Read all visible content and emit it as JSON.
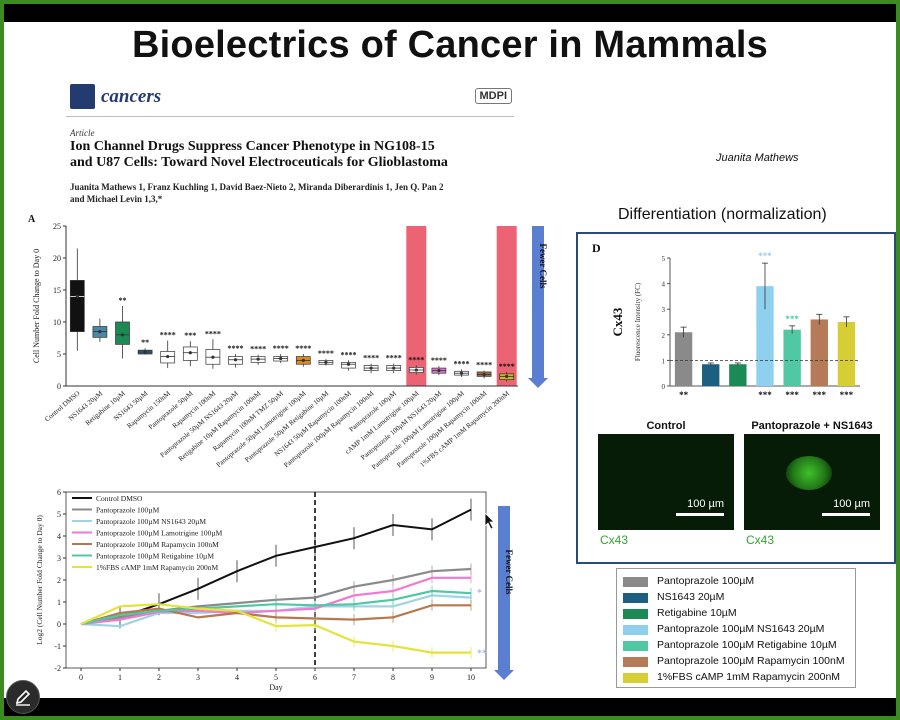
{
  "slide": {
    "title": "Bioelectrics of Cancer in Mammals",
    "presenter": "Juanita Mathews"
  },
  "paper": {
    "journal": "cancers",
    "publisher": "MDPI",
    "article_type": "Article",
    "title_line1": "Ion Channel Drugs Suppress Cancer Phenotype in NG108-15",
    "title_line2": "and U87 Cells: Toward Novel Electroceuticals for Glioblastoma",
    "authors_line1": "Juanita Mathews 1, Franz Kuchling 1, David Baez-Nieto 2, Miranda Diberardinis 1, Jen Q. Pan 2",
    "authors_line2": "and Michael Levin 1,3,*"
  },
  "colors": {
    "frame": "#3b8c1f",
    "arrow": "#5b7fd0",
    "highlight": "#e9495c",
    "panel_d_border": "#2a4a7e",
    "micro_label": "#2fa62f"
  },
  "differentiation_heading": "Differentiation (normalization)",
  "chart_data": [
    {
      "id": "A",
      "type": "box",
      "panel_label": "A",
      "ylabel": "Cell Number Fold Change to Day 0",
      "ylim": [
        0,
        25
      ],
      "yticks": [
        0,
        5,
        10,
        15,
        20,
        25
      ],
      "side_label": "Fewer Cells",
      "categories": [
        "Control DMSO",
        "NS1643 20µM",
        "Retigabine 10µM",
        "NS1643 50µM",
        "Rapamycin 150nM",
        "Pantoprazole 50µM",
        "Rapamycin 100nM",
        "Pantoprazole 50µM NS1643 20µM",
        "Retigabine 10µM Rapamycin 100nM",
        "Rapamycin 100nM TMZ 50µM",
        "Pantoprazole 50µM Lamotrigine 100µM",
        "Pantoprazole 50µM Retigabine 10µM",
        "NS1643 50µM Rapamycin 100nM",
        "Pantoprazole 100µM Rapamycin 100nM",
        "Pantoprazole 100µM",
        "cAMP 1mM Lamotrigine 100µM",
        "Pantoprazole 100µM NS1643 20µM",
        "Pantoprazole 100µM Lamotrigine 100µM",
        "Pantoprazole 100µM Rapamycin 100nM",
        "1%FBS cAMP 1mM Rapamycin 200nM"
      ],
      "medians": [
        14,
        8.5,
        8,
        5.3,
        4.6,
        5.2,
        4.5,
        4.1,
        4.2,
        4.3,
        4.0,
        3.7,
        3.4,
        2.8,
        2.8,
        2.5,
        2.4,
        2.0,
        1.8,
        1.5
      ],
      "q1": [
        8.5,
        7.6,
        6.5,
        5.0,
        3.6,
        4.0,
        3.4,
        3.4,
        3.7,
        3.9,
        3.4,
        3.4,
        2.8,
        2.4,
        2.4,
        2.1,
        2.0,
        1.7,
        1.5,
        1.0
      ],
      "q3": [
        16.5,
        9.3,
        10,
        5.6,
        5.4,
        6.1,
        5.7,
        4.6,
        4.6,
        4.6,
        4.6,
        4.0,
        3.7,
        3.2,
        3.2,
        2.9,
        2.8,
        2.3,
        2.2,
        1.9
      ],
      "whisker_low": [
        5.5,
        6.9,
        4.3,
        4.9,
        2.8,
        3.1,
        2.7,
        2.9,
        3.3,
        3.6,
        3.0,
        3.2,
        2.4,
        2.0,
        2.0,
        1.8,
        1.7,
        1.4,
        1.2,
        0.7
      ],
      "whisker_high": [
        21.5,
        10.5,
        12.5,
        5.9,
        7.1,
        7.0,
        7.3,
        5.0,
        4.9,
        5.0,
        5.0,
        4.2,
        4.0,
        3.5,
        3.5,
        3.2,
        3.1,
        2.6,
        2.4,
        2.2
      ],
      "box_colors": [
        "#111111",
        "#4a86a8",
        "#1c8a55",
        "#2b5e8e",
        "#ffffff",
        "#ffffff",
        "#ffffff",
        "#ffffff",
        "#ffffff",
        "#ffffff",
        "#e08a1e",
        "#ffffff",
        "#ffffff",
        "#ffffff",
        "#ffffff",
        "#ffffff",
        "#d977c8",
        "#ffffff",
        "#a06b45",
        "#c9b91e"
      ],
      "significance": [
        "",
        "",
        "**",
        "**",
        "****",
        "***",
        "****",
        "****",
        "****",
        "****",
        "****",
        "****",
        "****",
        "****",
        "****",
        "****",
        "****",
        "****",
        "****",
        "****"
      ],
      "highlighted": [
        "cAMP 1mM Lamotrigine 100µM",
        "1%FBS cAMP 1mM Rapamycin 200nM"
      ]
    },
    {
      "id": "B",
      "type": "line",
      "ylabel": "Log2 (Cell Number Fold Change to Day 0)",
      "xlabel": "Day",
      "x": [
        0,
        1,
        2,
        3,
        4,
        5,
        6,
        7,
        8,
        9,
        10
      ],
      "ylim": [
        -2,
        6
      ],
      "yticks": [
        -2,
        -1,
        0,
        1,
        2,
        3,
        4,
        5,
        6
      ],
      "xticks": [
        0,
        1,
        2,
        3,
        4,
        5,
        6,
        7,
        8,
        9,
        10
      ],
      "vline_day": 6,
      "side_label": "Fewer Cells",
      "annotations": [
        "*",
        "**"
      ],
      "series": [
        {
          "name": "Control DMSO",
          "color": "#111111",
          "values": [
            0,
            0.3,
            0.9,
            1.6,
            2.4,
            3.1,
            3.5,
            3.9,
            4.5,
            4.3,
            5.2
          ]
        },
        {
          "name": "Pantoprazole 100µM",
          "color": "#8a8a8a",
          "values": [
            0,
            0.3,
            0.6,
            0.8,
            0.95,
            1.1,
            1.2,
            1.7,
            2.0,
            2.4,
            2.5
          ]
        },
        {
          "name": "Pantoprazole 100µM NS1643 20µM",
          "color": "#9fd4e4",
          "values": [
            0,
            -0.1,
            0.5,
            0.5,
            0.6,
            0.6,
            0.8,
            0.8,
            0.8,
            1.3,
            1.2
          ]
        },
        {
          "name": "Pantoprazole 100µM Lamotrigine 100µM",
          "color": "#f07ad2",
          "values": [
            0,
            0.2,
            0.55,
            0.6,
            0.5,
            0.6,
            0.7,
            1.3,
            1.5,
            2.1,
            2.1
          ]
        },
        {
          "name": "Pantoprazole 100µM Rapamycin 100nM",
          "color": "#b5794d",
          "values": [
            0,
            0.5,
            0.7,
            0.3,
            0.5,
            0.3,
            0.25,
            0.2,
            0.3,
            0.85,
            0.85
          ]
        },
        {
          "name": "Pantoprazole 100µM Retigabine 10µM",
          "color": "#4fc8a3",
          "values": [
            0,
            0.4,
            0.6,
            0.7,
            0.8,
            0.9,
            0.85,
            0.9,
            1.1,
            1.5,
            1.4
          ]
        },
        {
          "name": "1%FBS cAMP 1mM Rapamycin 200nM",
          "color": "#e3e33a",
          "values": [
            0,
            0.8,
            0.9,
            0.7,
            0.6,
            -0.1,
            -0.05,
            -0.8,
            -1.0,
            -1.3,
            -1.3
          ]
        }
      ]
    },
    {
      "id": "D",
      "type": "bar",
      "panel_label": "D",
      "title_left": "Cx43",
      "ylabel": "Fluorescence Intensity (FC)",
      "ylim": [
        0,
        5
      ],
      "yticks": [
        0,
        1,
        2,
        3,
        4,
        5
      ],
      "reference_line": 1,
      "categories": [
        "Pantoprazole 100µM",
        "NS1643 20µM",
        "Retigabine 10µM",
        "Pantoprazole 100µM NS1643 20µM",
        "Pantoprazole 100µM Retigabine 10µM",
        "Pantoprazole 100µM Rapamycin 100nM",
        "1%FBS cAMP 1mM Rapamycin 200nM"
      ],
      "values": [
        2.1,
        0.85,
        0.85,
        3.9,
        2.2,
        2.6,
        2.5
      ],
      "errors": [
        0.2,
        0.05,
        0.05,
        0.9,
        0.15,
        0.2,
        0.2
      ],
      "colors": [
        "#8a8a8a",
        "#1d5f80",
        "#1c8a55",
        "#8fd0ee",
        "#4fc8a3",
        "#b57b58",
        "#d7ce35"
      ],
      "top_marks": [
        "",
        "",
        "",
        "***",
        "***",
        "",
        ""
      ],
      "bottom_marks": [
        "**",
        "",
        "",
        "***",
        "***",
        "***",
        "***"
      ]
    }
  ],
  "micrographs": {
    "left": {
      "title": "Control",
      "scale": "100 µm",
      "label": "Cx43"
    },
    "right": {
      "title": "Pantoprazole + NS1643",
      "scale": "100 µm",
      "label": "Cx43"
    }
  },
  "legend_d": [
    {
      "label": "Pantoprazole 100µM",
      "color": "#8a8a8a"
    },
    {
      "label": "NS1643 20µM",
      "color": "#1d5f80"
    },
    {
      "label": "Retigabine 10µM",
      "color": "#1c8a55"
    },
    {
      "label": "Pantoprazole 100µM NS1643 20µM",
      "color": "#8fd0ee"
    },
    {
      "label": "Pantoprazole 100µM Retigabine 10µM",
      "color": "#4fc8a3"
    },
    {
      "label": "Pantoprazole 100µM Rapamycin 100nM",
      "color": "#b57b58"
    },
    {
      "label": "1%FBS cAMP 1mM Rapamycin 200nM",
      "color": "#d7ce35"
    }
  ]
}
